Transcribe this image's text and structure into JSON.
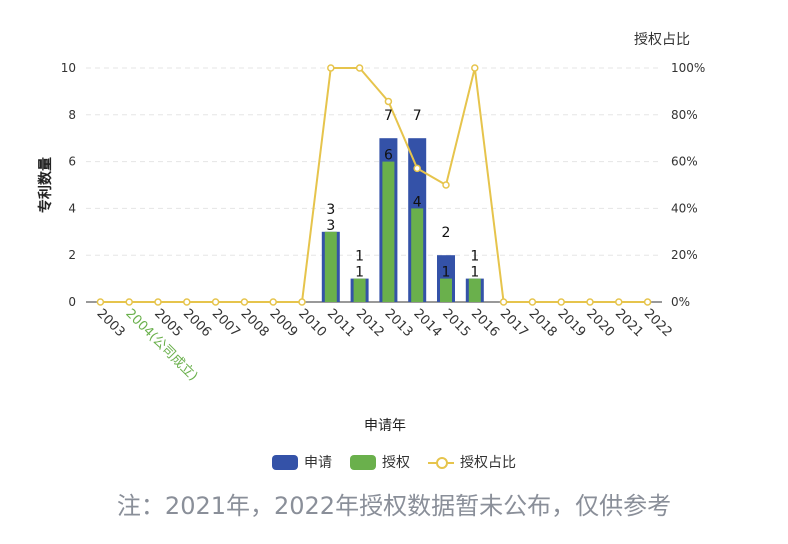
{
  "chart_data": {
    "type": "bar",
    "categories": [
      "2003",
      "2004(公司成立)",
      "2005",
      "2006",
      "2007",
      "2008",
      "2009",
      "2010",
      "2011",
      "2012",
      "2013",
      "2014",
      "2015",
      "2016",
      "2017",
      "2018",
      "2019",
      "2020",
      "2021",
      "2022"
    ],
    "highlight_category_index": 1,
    "series": [
      {
        "name": "申请",
        "type": "bar",
        "color": "#3452a8",
        "values": [
          0,
          0,
          0,
          0,
          0,
          0,
          0,
          0,
          3,
          1,
          7,
          7,
          2,
          1,
          0,
          0,
          0,
          0,
          0,
          0
        ]
      },
      {
        "name": "授权",
        "type": "bar",
        "color": "#6ab04c",
        "values": [
          0,
          0,
          0,
          0,
          0,
          0,
          0,
          0,
          3,
          1,
          6,
          4,
          1,
          1,
          0,
          0,
          0,
          0,
          0,
          0
        ]
      },
      {
        "name": "授权占比",
        "type": "line",
        "color": "#e6c44c",
        "axis": "right",
        "values": [
          0,
          0,
          0,
          0,
          0,
          0,
          0,
          0,
          100,
          100,
          85.7,
          57.1,
          50,
          100,
          0,
          0,
          0,
          0,
          0,
          0
        ]
      }
    ],
    "xlabel": "申请年",
    "ylabel": "专利数量",
    "y2label": "授权占比",
    "ylim": [
      0,
      10
    ],
    "yticks": [
      "0",
      "2",
      "4",
      "6",
      "8",
      "10"
    ],
    "y2lim": [
      0,
      100
    ],
    "y2ticks": [
      "0%",
      "20%",
      "40%",
      "60%",
      "80%",
      "100%"
    ],
    "grid": true,
    "legend_position": "bottom"
  },
  "note": "注：2021年，2022年授权数据暂未公布，仅供参考",
  "colors": {
    "highlight_label": "#6ab04c",
    "axis_text": "#333333",
    "grid": "#e5e5e5"
  }
}
